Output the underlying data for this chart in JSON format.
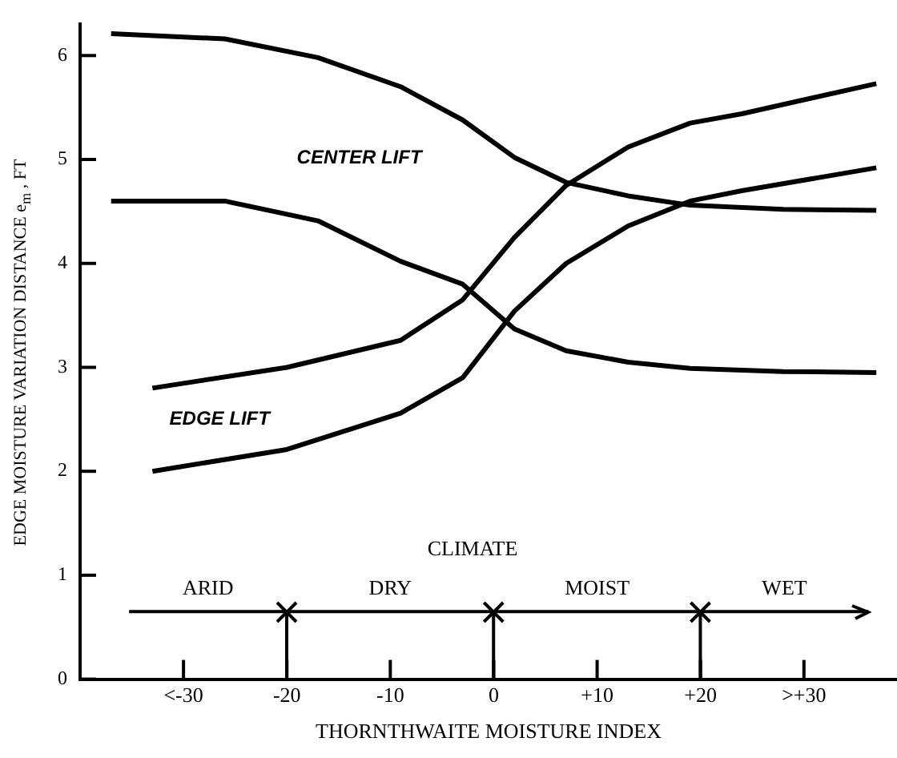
{
  "chart_data": {
    "type": "line",
    "xlabel": "THORNTHWAITE MOISTURE INDEX",
    "ylabel": "EDGE MOISTURE VARIATION DISTANCE  e$_{m}$ , FT",
    "xlim": [
      -40,
      39
    ],
    "ylim": [
      0,
      6.3
    ],
    "xticks": [
      {
        "value": -30,
        "label": "<-30"
      },
      -20,
      -10,
      0,
      {
        "value": 10,
        "label": "+10"
      },
      {
        "value": 20,
        "label": "+20"
      },
      {
        "value": 30,
        "label": ">+30"
      }
    ],
    "yticks": [
      0,
      1,
      2,
      3,
      4,
      5,
      6
    ],
    "grid": false,
    "legend": false,
    "series": [
      {
        "name": "CENTER LIFT",
        "color": "#000000",
        "x": [
          -37,
          -26,
          -17,
          -9,
          -3,
          2,
          7,
          13,
          19,
          28,
          37
        ],
        "values": [
          6.21,
          6.16,
          5.98,
          5.7,
          5.38,
          5.02,
          4.78,
          4.65,
          4.56,
          4.52,
          4.51
        ]
      },
      {
        "color": "#000000",
        "x": [
          -37,
          -26,
          -17,
          -9,
          -3,
          2,
          7,
          13,
          19,
          28,
          37
        ],
        "values": [
          4.6,
          4.6,
          4.41,
          4.02,
          3.8,
          3.37,
          3.16,
          3.05,
          2.99,
          2.96,
          2.95
        ]
      },
      {
        "name": "EDGE LIFT",
        "color": "#000000",
        "x": [
          -33,
          -20,
          -9,
          -3,
          2,
          7,
          13,
          19,
          24,
          37
        ],
        "values": [
          2.8,
          3.0,
          3.26,
          3.65,
          4.25,
          4.75,
          5.12,
          5.35,
          5.44,
          5.73
        ]
      },
      {
        "color": "#000000",
        "x": [
          -33,
          -20,
          -9,
          -3,
          2,
          7,
          13,
          19,
          24,
          37
        ],
        "values": [
          2.0,
          2.21,
          2.56,
          2.9,
          3.54,
          4.0,
          4.36,
          4.6,
          4.7,
          4.92
        ]
      }
    ],
    "ref_lines": [
      {
        "axis": "y",
        "value": 0.65
      }
    ],
    "annotations": [
      "CLIMATE",
      "ARID",
      "DRY",
      "MOIST",
      "WET"
    ]
  }
}
